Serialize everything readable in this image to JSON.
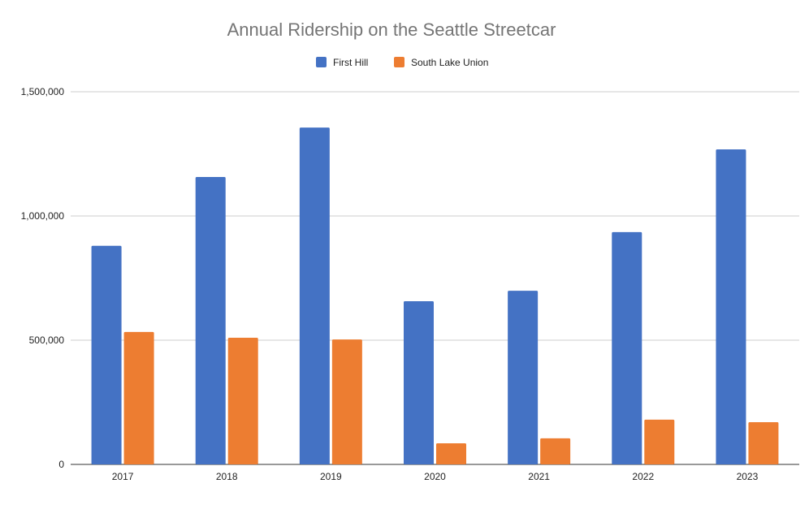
{
  "chart_data": {
    "type": "bar",
    "title": "Annual Ridership on the Seattle Streetcar",
    "xlabel": "",
    "ylabel": "",
    "categories": [
      "2017",
      "2018",
      "2019",
      "2020",
      "2021",
      "2022",
      "2023"
    ],
    "series": [
      {
        "name": "First Hill",
        "color": "#4472c4",
        "values": [
          880000,
          1157000,
          1356000,
          657000,
          699000,
          935000,
          1268000
        ]
      },
      {
        "name": "South Lake Union",
        "color": "#ed7d31",
        "values": [
          533000,
          510000,
          503000,
          85000,
          105000,
          180000,
          170000
        ]
      }
    ],
    "ylim": [
      0,
      1500000
    ],
    "yticks": [
      0,
      500000,
      1000000,
      1500000
    ],
    "ytick_labels": [
      "0",
      "500,000",
      "1,000,000",
      "1,500,000"
    ],
    "grid": true,
    "legend": "top"
  }
}
